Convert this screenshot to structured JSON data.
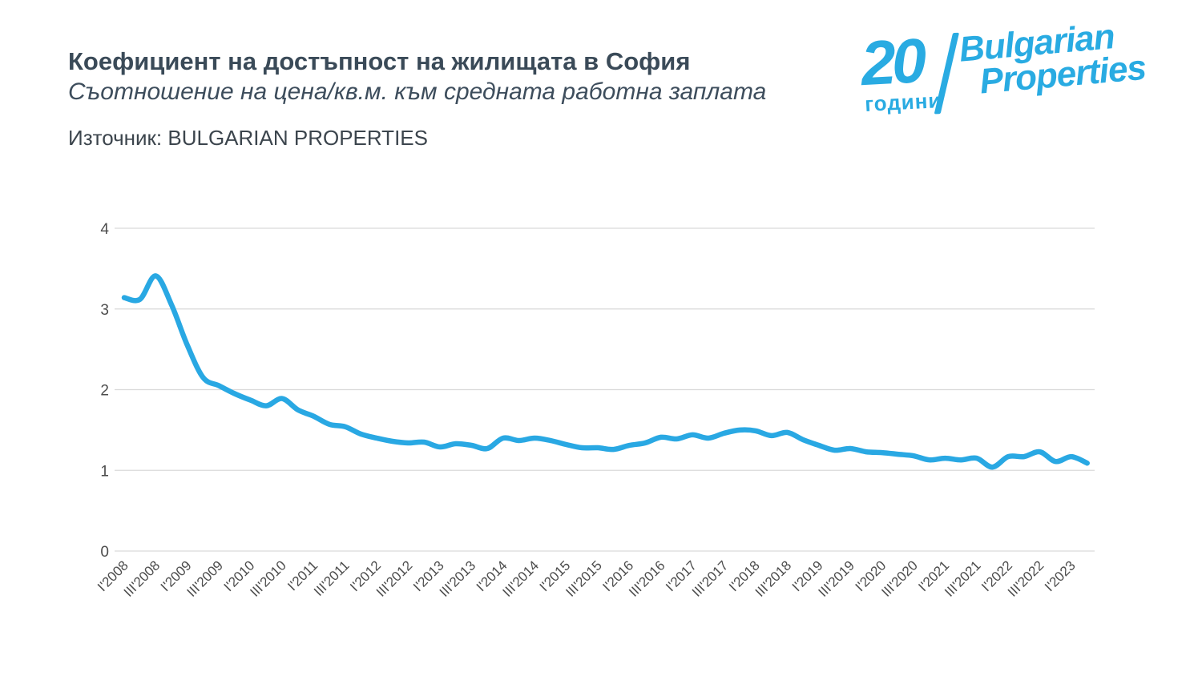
{
  "header": {
    "title": "Коефициент на достъпност на жилищата в София",
    "subtitle": "Съотношение на цена/кв.м. към средната работна заплата",
    "source": "Източник: BULGARIAN PROPERTIES"
  },
  "logo": {
    "number": "20",
    "years_label": "години",
    "brand_line1": "Bulgarian",
    "brand_line2": "Properties",
    "color": "#29abe2"
  },
  "chart_data": {
    "type": "line",
    "title": "Коефициент на достъпност на жилищата в София",
    "ylabel": "",
    "xlabel": "",
    "ylim": [
      0,
      4
    ],
    "yticks": [
      0,
      1,
      2,
      3,
      4
    ],
    "grid": true,
    "legend_position": "none",
    "line_color": "#29a8e3",
    "grid_color": "#d9d9d9",
    "tick_color": "#4c4c4c",
    "x_quarters": [
      "I'2008",
      "II'2008",
      "III'2008",
      "IV'2008",
      "I'2009",
      "II'2009",
      "III'2009",
      "IV'2009",
      "I'2010",
      "II'2010",
      "III'2010",
      "IV'2010",
      "I'2011",
      "II'2011",
      "III'2011",
      "IV'2011",
      "I'2012",
      "II'2012",
      "III'2012",
      "IV'2012",
      "I'2013",
      "II'2013",
      "III'2013",
      "IV'2013",
      "I'2014",
      "II'2014",
      "III'2014",
      "IV'2014",
      "I'2015",
      "II'2015",
      "III'2015",
      "IV'2015",
      "I'2016",
      "II'2016",
      "III'2016",
      "IV'2016",
      "I'2017",
      "II'2017",
      "III'2017",
      "IV'2017",
      "I'2018",
      "II'2018",
      "III'2018",
      "IV'2018",
      "I'2019",
      "II'2019",
      "III'2019",
      "IV'2019",
      "I'2020",
      "II'2020",
      "III'2020",
      "IV'2020",
      "I'2021",
      "II'2021",
      "III'2021",
      "IV'2021",
      "I'2022",
      "II'2022",
      "III'2022",
      "IV'2022",
      "I'2023",
      "II'2023"
    ],
    "values": [
      3.14,
      3.12,
      3.41,
      3.05,
      2.55,
      2.15,
      2.05,
      1.95,
      1.87,
      1.8,
      1.89,
      1.75,
      1.67,
      1.57,
      1.54,
      1.45,
      1.4,
      1.36,
      1.34,
      1.35,
      1.29,
      1.33,
      1.31,
      1.27,
      1.4,
      1.37,
      1.4,
      1.37,
      1.32,
      1.28,
      1.28,
      1.26,
      1.31,
      1.34,
      1.41,
      1.39,
      1.44,
      1.4,
      1.46,
      1.5,
      1.49,
      1.43,
      1.47,
      1.38,
      1.31,
      1.25,
      1.27,
      1.23,
      1.22,
      1.2,
      1.18,
      1.13,
      1.15,
      1.13,
      1.15,
      1.04,
      1.17,
      1.17,
      1.23,
      1.11,
      1.17,
      1.09
    ],
    "visible_tick_labels": [
      "I'2008",
      "III'2008",
      "I'2009",
      "III'2009",
      "I'2010",
      "III'2010",
      "I'2011",
      "III'2011",
      "I'2012",
      "III'2012",
      "I'2013",
      "III'2013",
      "I'2014",
      "III'2014",
      "I'2015",
      "III'2015",
      "I'2016",
      "III'2016",
      "I'2017",
      "III'2017",
      "I'2018",
      "III'2018",
      "I'2019",
      "III'2019",
      "I'2020",
      "III'2020",
      "I'2021",
      "III'2021",
      "I'2022",
      "III'2022",
      "I'2023"
    ]
  }
}
